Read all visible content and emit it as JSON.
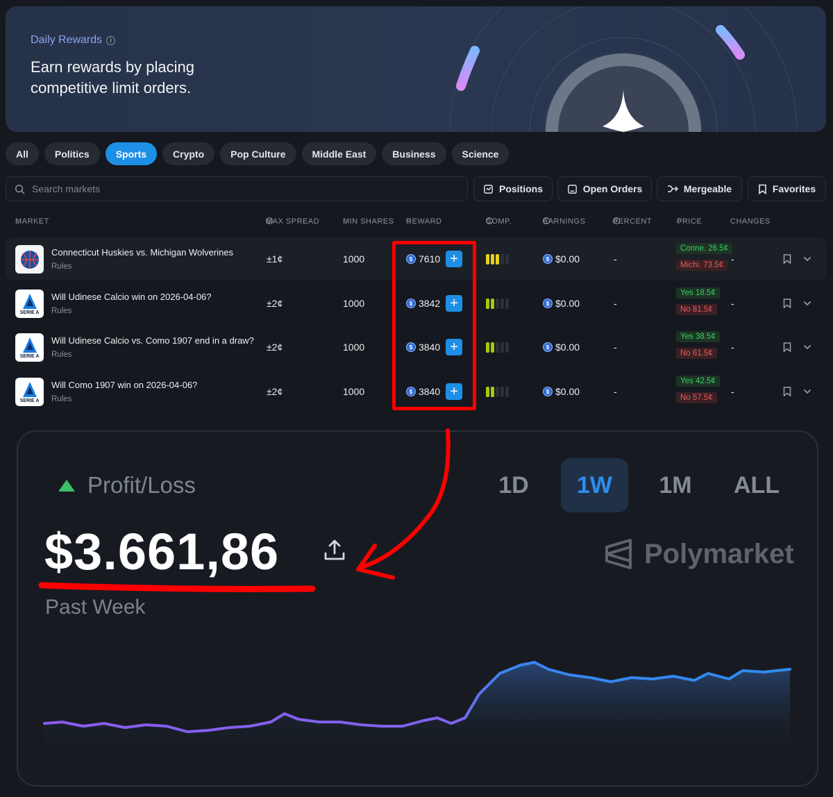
{
  "banner": {
    "label": "Daily Rewards",
    "headline": "Earn rewards by placing competitive limit orders."
  },
  "categories": [
    {
      "label": "All",
      "active": false
    },
    {
      "label": "Politics",
      "active": false
    },
    {
      "label": "Sports",
      "active": true
    },
    {
      "label": "Crypto",
      "active": false
    },
    {
      "label": "Pop Culture",
      "active": false
    },
    {
      "label": "Middle East",
      "active": false
    },
    {
      "label": "Business",
      "active": false
    },
    {
      "label": "Science",
      "active": false
    }
  ],
  "search": {
    "placeholder": "Search markets"
  },
  "toolbar": {
    "positions": "Positions",
    "open_orders": "Open Orders",
    "mergeable": "Mergeable",
    "favorites": "Favorites"
  },
  "table": {
    "headers": {
      "market": "MARKET",
      "max_spread": "MAX SPREAD",
      "min_shares": "MIN SHARES",
      "reward": "REWARD",
      "comp": "COMP.",
      "earnings": "EARNINGS",
      "percent": "PERCENT",
      "price": "PRICE",
      "changes": "CHANGES"
    },
    "rows": [
      {
        "title": "Connecticut Huskies vs. Michigan Wolverines",
        "rules": "Rules",
        "logo_text": "",
        "max_spread": "±1¢",
        "min_shares": "1000",
        "reward": "7610",
        "comp_level": 3,
        "comp_color": "#e6d21c",
        "earnings": "$0.00",
        "percent": "-",
        "price_yes": "Conne. 26.5¢",
        "price_no": "Michi. 73.5¢",
        "changes": "-"
      },
      {
        "title": "Will Udinese Calcio win on 2026-04-06?",
        "rules": "Rules",
        "logo_text": "SERIE A",
        "max_spread": "±2¢",
        "min_shares": "1000",
        "reward": "3842",
        "comp_level": 2,
        "comp_color": "#a6c80f",
        "earnings": "$0.00",
        "percent": "-",
        "price_yes": "Yes 18.5¢",
        "price_no": "No 81.5¢",
        "changes": "-"
      },
      {
        "title": "Will Udinese Calcio vs. Como 1907 end in a draw?",
        "rules": "Rules",
        "logo_text": "SERIE A",
        "max_spread": "±2¢",
        "min_shares": "1000",
        "reward": "3840",
        "comp_level": 2,
        "comp_color": "#a6c80f",
        "earnings": "$0.00",
        "percent": "-",
        "price_yes": "Yes 38.5¢",
        "price_no": "No 61.5¢",
        "changes": "-"
      },
      {
        "title": "Will Como 1907 win on 2026-04-06?",
        "rules": "Rules",
        "logo_text": "SERIE A",
        "max_spread": "±2¢",
        "min_shares": "1000",
        "reward": "3840",
        "comp_level": 2,
        "comp_color": "#a6c80f",
        "earnings": "$0.00",
        "percent": "-",
        "price_yes": "Yes 42.5¢",
        "price_no": "No 57.5¢",
        "changes": "-"
      }
    ]
  },
  "pnl": {
    "title": "Profit/Loss",
    "value": "$3.661,86",
    "period": "Past Week",
    "brand": "Polymarket",
    "timeframes": [
      {
        "label": "1D",
        "active": false
      },
      {
        "label": "1W",
        "active": true
      },
      {
        "label": "1M",
        "active": false
      },
      {
        "label": "ALL",
        "active": false
      }
    ]
  },
  "colors": {
    "accent": "#1d8fe6",
    "annotation": "#ff0000",
    "positive": "#3dbf6a",
    "negative": "#e85a5a"
  }
}
